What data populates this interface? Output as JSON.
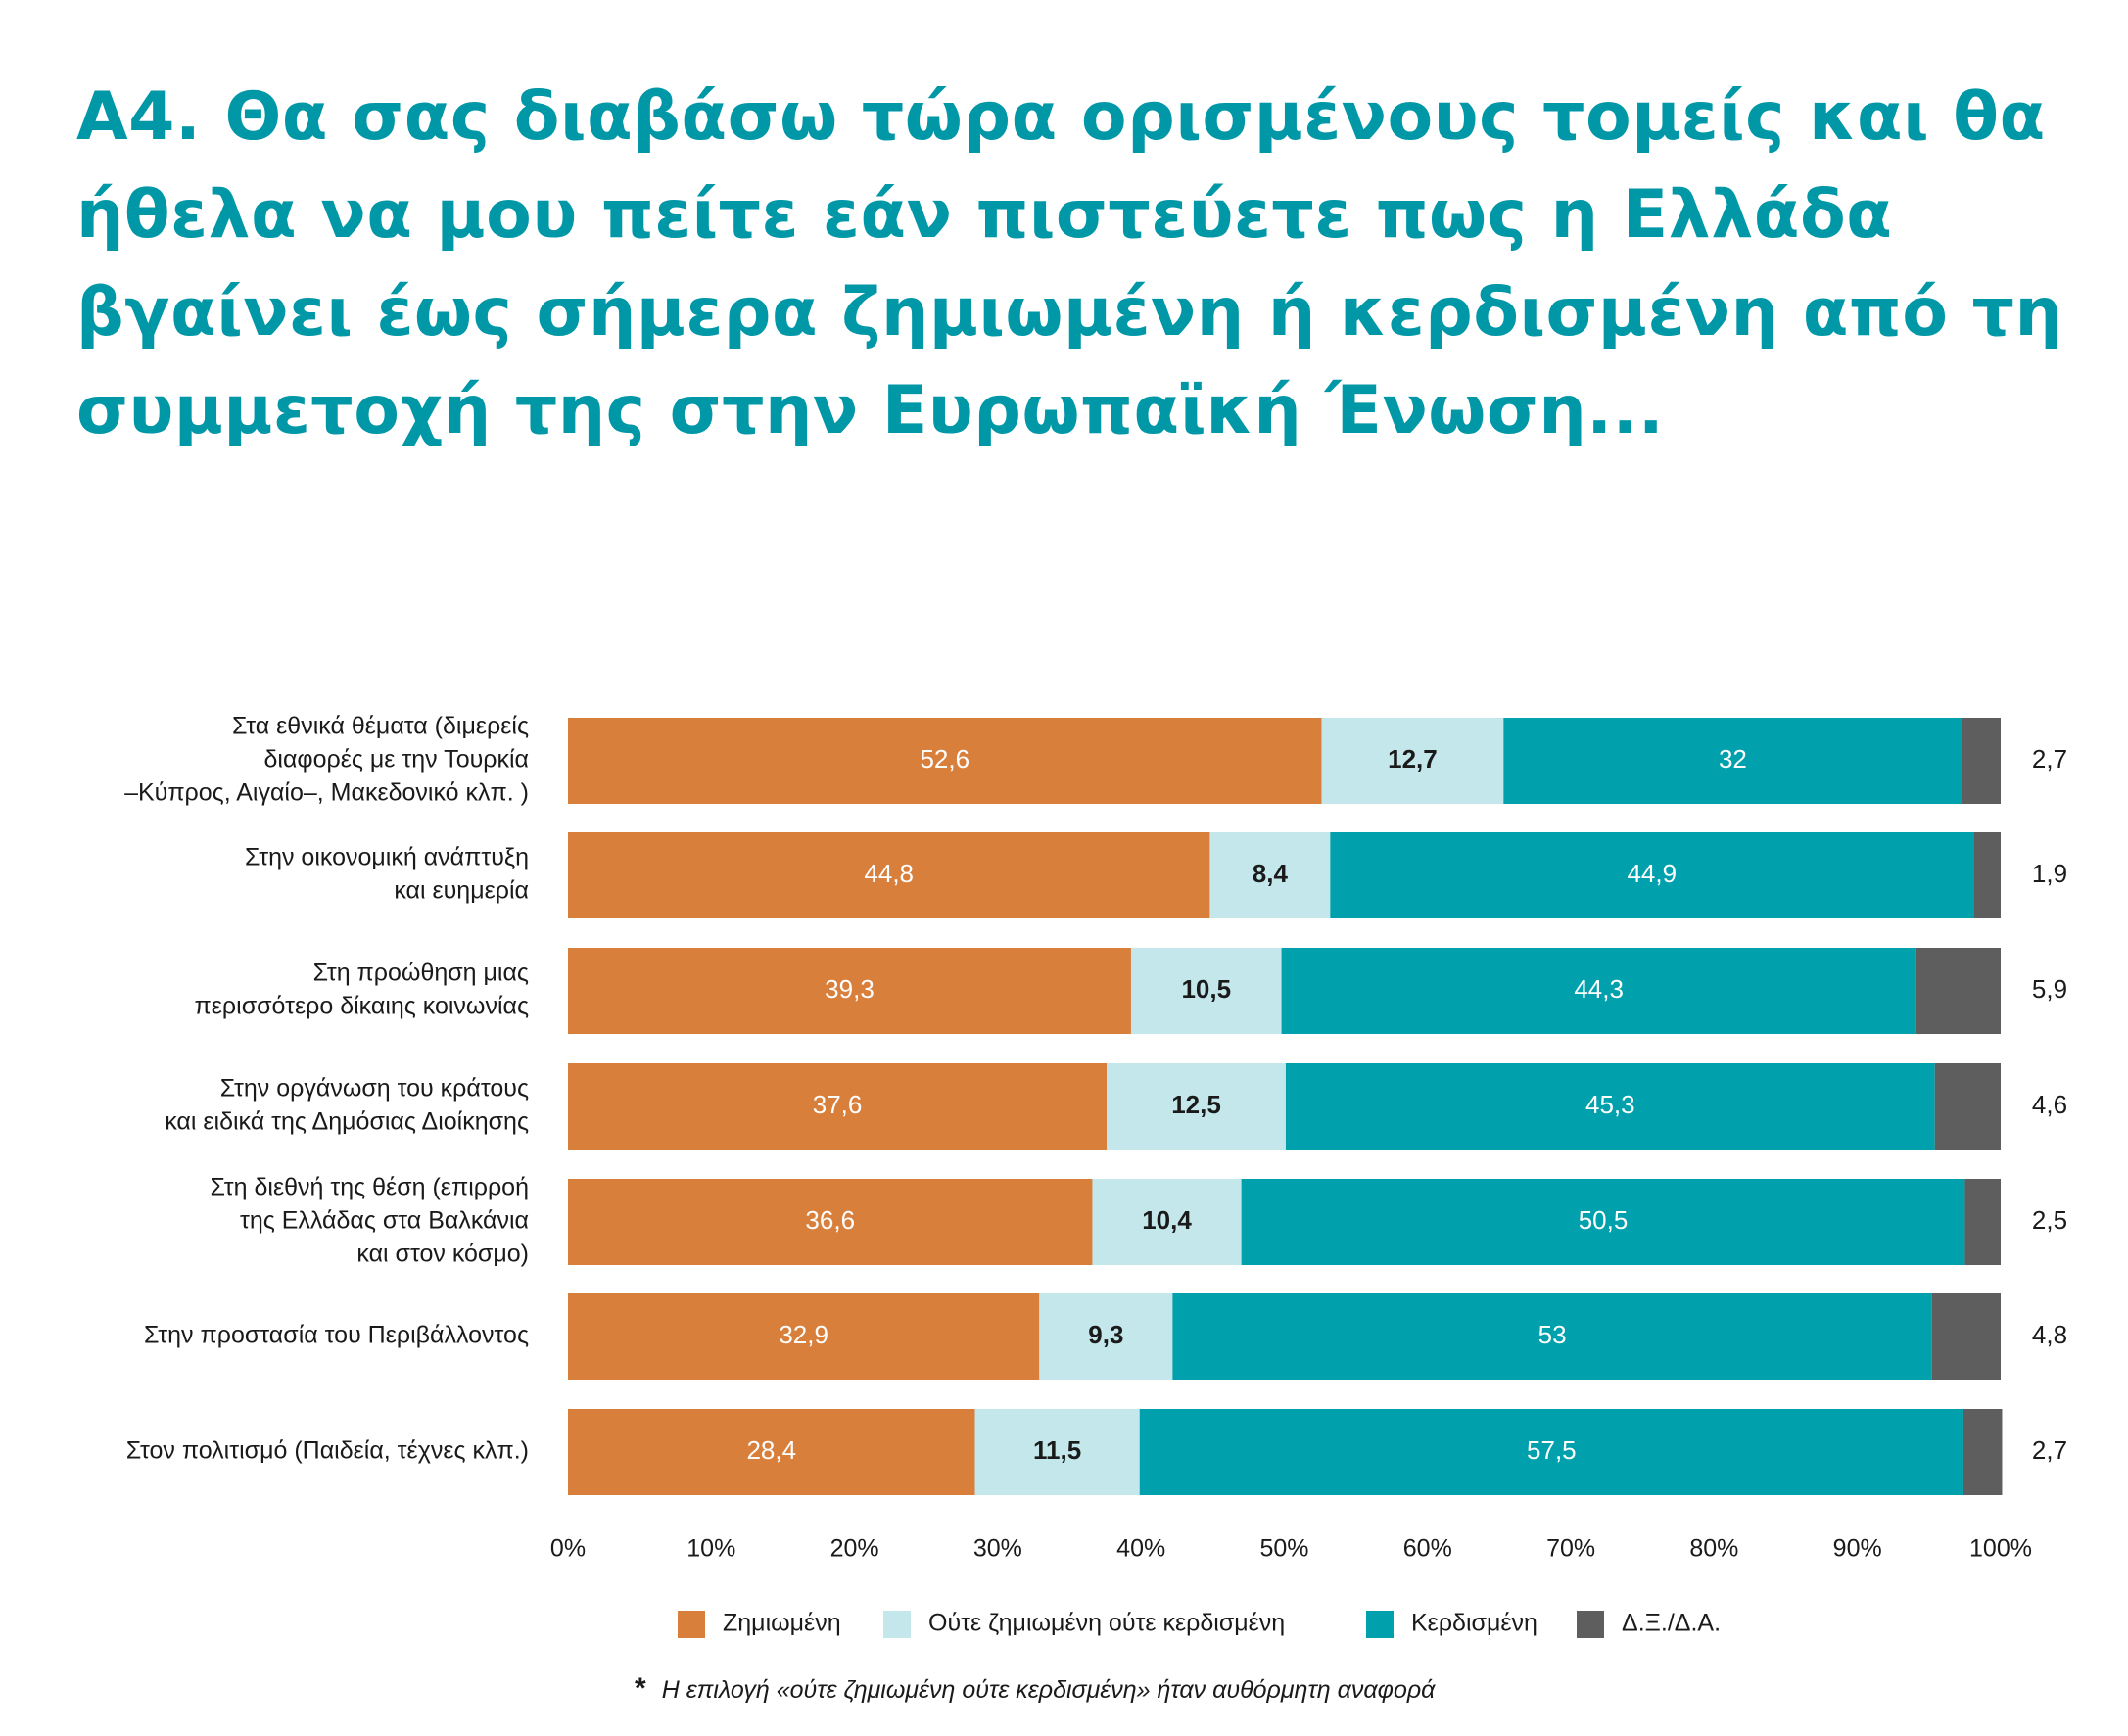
{
  "title": "Α4. Θα σας διαβάσω τώρα ορισμένους τομείς και θα ήθελα να μου πείτε εάν πιστεύετε πως η Ελλάδα βγαίνει έως σήμερα ζημιωμένη ή κερδισμένη από τη συμμετοχή της στην Ευρωπαϊκή Ένωση...",
  "footnote": {
    "marker": "*",
    "text": "Η επιλογή «ούτε ζημιωμένη ούτε κερδισμένη» ήταν αυθόρμητη αναφορά"
  },
  "chart_data": {
    "type": "bar",
    "orientation": "horizontal",
    "stacked": true,
    "title": "",
    "xlabel": "",
    "ylabel": "",
    "xlim": [
      0,
      100
    ],
    "x_ticks": [
      "0%",
      "10%",
      "20%",
      "30%",
      "40%",
      "50%",
      "60%",
      "70%",
      "80%",
      "90%",
      "100%"
    ],
    "grid": false,
    "legend_position": "bottom",
    "categories": [
      [
        "Στα εθνικά θέματα (διμερείς",
        "διαφορές με την Τουρκία",
        "–Κύπρος, Αιγαίο–, Μακεδονικό κλπ. )"
      ],
      [
        "Στην οικονομική ανάπτυξη",
        "και ευημερία"
      ],
      [
        "Στη προώθηση μιας",
        "περισσότερο δίκαιης κοινωνίας"
      ],
      [
        "Στην οργάνωση του κράτους",
        "και ειδικά της Δημόσιας Διοίκησης"
      ],
      [
        "Στη διεθνή της θέση (επιρροή",
        "της Ελλάδας στα Βαλκάνια",
        "και στον κόσμο)"
      ],
      [
        "Στην προστασία του Περιβάλλοντος"
      ],
      [
        "Στον πολιτισμό (Παιδεία, τέχνες κλπ.)"
      ]
    ],
    "series": [
      {
        "name": "Ζημιωμένη",
        "color": "#d97f3c",
        "label_color": "#ffffff",
        "values": [
          52.6,
          44.8,
          39.3,
          37.6,
          36.6,
          32.9,
          28.4
        ],
        "labels": [
          "52,6",
          "44,8",
          "39,3",
          "37,6",
          "36,6",
          "32,9",
          "28,4"
        ]
      },
      {
        "name": "Ούτε ζημιωμένη ούτε κερδισμένη",
        "color": "#c3e7ea",
        "label_color": "#1a1a1a",
        "values": [
          12.7,
          8.4,
          10.5,
          12.5,
          10.4,
          9.3,
          11.5
        ],
        "labels": [
          "12,7",
          "8,4",
          "10,5",
          "12,5",
          "10,4",
          "9,3",
          "11,5"
        ]
      },
      {
        "name": "Κερδισμένη",
        "color": "#00a0ad",
        "label_color": "#ffffff",
        "values": [
          32,
          44.9,
          44.3,
          45.3,
          50.5,
          53,
          57.5
        ],
        "labels": [
          "32",
          "44,9",
          "44,3",
          "45,3",
          "50,5",
          "53",
          "57,5"
        ]
      },
      {
        "name": "Δ.Ξ./Δ.Α.",
        "color": "#5e5e5e",
        "label_color": "#1a1a1a",
        "values": [
          2.7,
          1.9,
          5.9,
          4.6,
          2.5,
          4.8,
          2.7
        ],
        "labels": [
          "2,7",
          "1,9",
          "5,9",
          "4,6",
          "2,5",
          "4,8",
          "2,7"
        ]
      }
    ]
  }
}
